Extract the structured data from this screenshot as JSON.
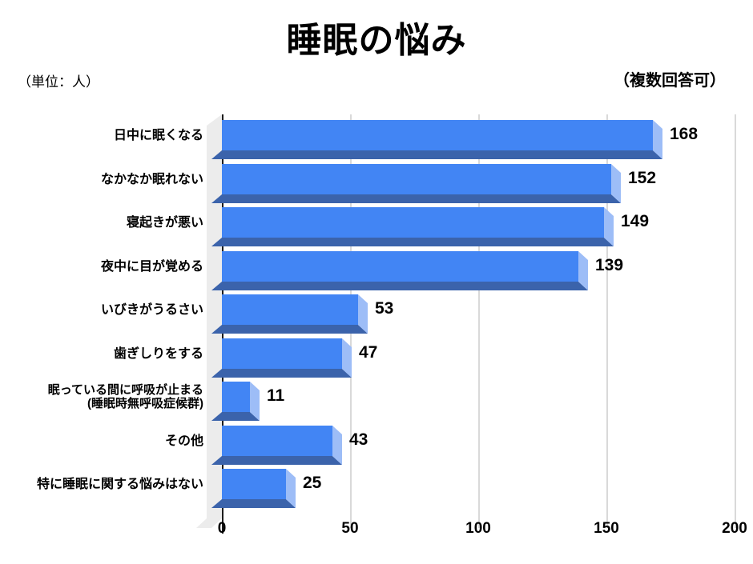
{
  "title": "睡眠の悩み",
  "unit_note": "（単位：人）",
  "multi_answer_note": "（複数回答可）",
  "chart_data": {
    "type": "bar",
    "orientation": "horizontal",
    "title": "睡眠の悩み",
    "categories": [
      "日中に眠くなる",
      "なかなか眠れない",
      "寝起きが悪い",
      "夜中に目が覚める",
      "いびきがうるさい",
      "歯ぎしりをする",
      "眠っている間に呼吸が止まる\n(睡眠時無呼吸症候群)",
      "その他",
      "特に睡眠に関する悩みはない"
    ],
    "values": [
      168,
      152,
      149,
      139,
      53,
      47,
      11,
      43,
      25
    ],
    "x_ticks": [
      0,
      50,
      100,
      150,
      200
    ],
    "xlim": [
      0,
      200
    ],
    "unit": "人",
    "grid": true,
    "style_3d": true,
    "colors": {
      "bar_front": "#4285f4",
      "bar_bottom_face": "#3b63ab",
      "bar_end_cap": "#9dbdf7",
      "wall": "#ececec",
      "gridline": "#d9d9d9",
      "axis": "#1c1c1c",
      "text": "#000000"
    }
  }
}
